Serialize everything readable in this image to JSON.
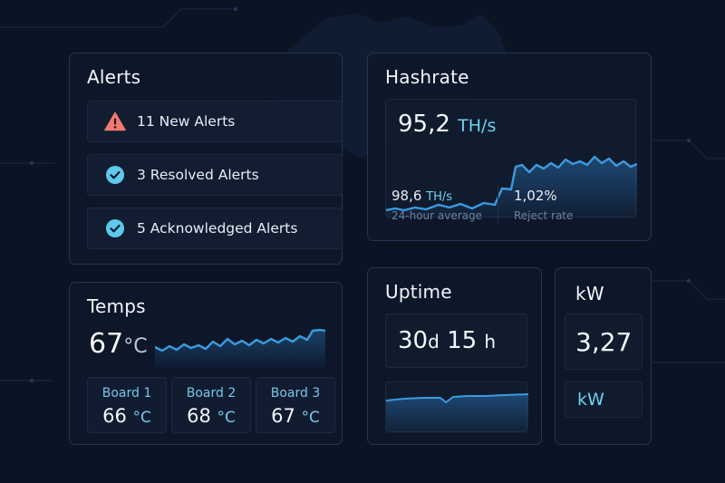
{
  "alerts": {
    "title": "Alerts",
    "items": [
      {
        "label": "11 New Alerts",
        "icon": "warning-icon",
        "color": "#f07b6f"
      },
      {
        "label": "3 Resolved Alerts",
        "icon": "check-circle-icon",
        "color": "#5fc9ec"
      },
      {
        "label": "5 Acknowledged Alerts",
        "icon": "check-circle-icon",
        "color": "#5fc9ec"
      }
    ]
  },
  "hashrate": {
    "title": "Hashrate",
    "value": "95,2",
    "unit": "TH/s",
    "avg_value": "98,6",
    "avg_unit": "TH/s",
    "avg_label": "24-hour average",
    "reject_value": "1,02%",
    "reject_label": "Reject rate"
  },
  "temps": {
    "title": "Temps",
    "value": "67",
    "unit": "°C",
    "boards": [
      {
        "name": "Board 1",
        "value": "66",
        "unit": "°C"
      },
      {
        "name": "Board 2",
        "value": "68",
        "unit": "°C"
      },
      {
        "name": "Board 3",
        "value": "67",
        "unit": "°C"
      }
    ]
  },
  "uptime": {
    "title": "Uptime",
    "days": "30",
    "days_unit": "d",
    "hours": "15",
    "hours_unit": "h"
  },
  "power": {
    "title": "kW",
    "value": "3,27",
    "unit": "kW"
  },
  "colors": {
    "accent": "#3b9be0",
    "accent_light": "#6fd2f0",
    "background": "#0b1424",
    "card": "#0e182a",
    "warning": "#f07b6f"
  }
}
